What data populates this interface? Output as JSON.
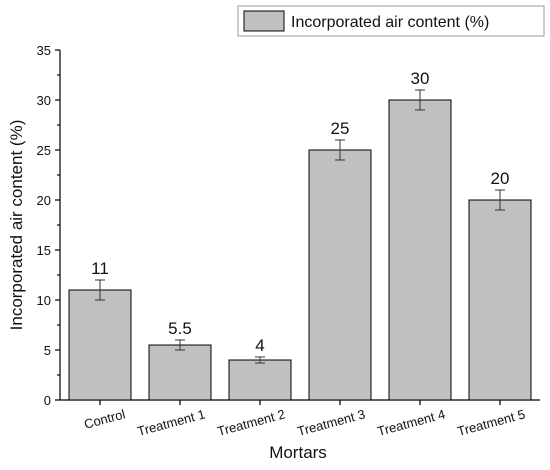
{
  "chart_data": {
    "type": "bar",
    "categories": [
      "Control",
      "Treatment 1",
      "Treatment 2",
      "Treatment 3",
      "Treatment 4",
      "Treatment 5"
    ],
    "series": [
      {
        "name": "Incorporated air content (%)",
        "values": [
          11,
          5.5,
          4,
          25,
          30,
          20
        ],
        "errors": [
          1,
          0.5,
          0.3,
          1,
          1,
          1
        ],
        "data_labels": [
          "11",
          "5.5",
          "4",
          "25",
          "30",
          "20"
        ]
      }
    ],
    "xlabel": "Mortars",
    "ylabel": "Incorporated air content (%)",
    "ylim": [
      0,
      35
    ],
    "yticks": [
      0,
      5,
      10,
      15,
      20,
      25,
      30,
      35
    ],
    "ytick_labels": [
      "0",
      "5",
      "10",
      "15",
      "20",
      "25",
      "30",
      "35"
    ],
    "grid": false,
    "legend": "top-right",
    "colors": {
      "bar_fill": "#c0c0c0",
      "bar_stroke": "#000000",
      "error_bar": "#333333"
    }
  }
}
